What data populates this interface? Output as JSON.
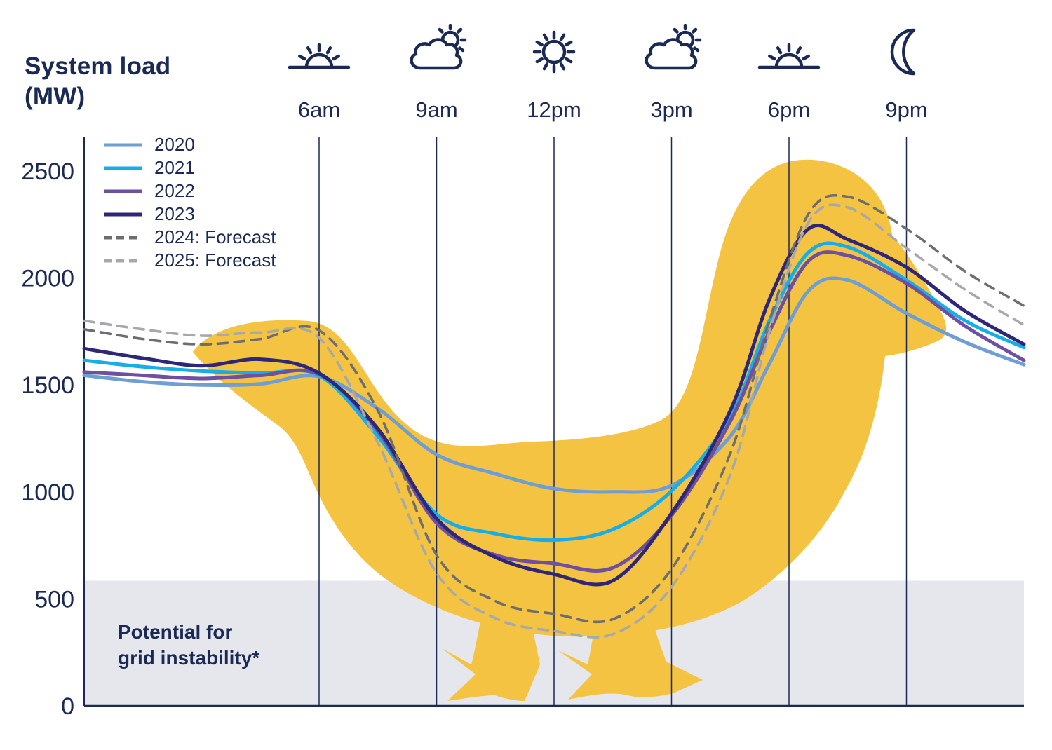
{
  "title": "System load (MW)",
  "instability_band": {
    "line1": "Potential for",
    "line2": "grid instability*"
  },
  "colors": {
    "navy": "#1b2a55",
    "duck_yellow": "#f5c342",
    "band_gray": "#e6e7ec",
    "grid": "#1b2a55"
  },
  "time_axis": [
    {
      "label": "6am",
      "icon": "sunrise-icon"
    },
    {
      "label": "9am",
      "icon": "sun-behind-cloud-icon"
    },
    {
      "label": "12pm",
      "icon": "sun-icon"
    },
    {
      "label": "3pm",
      "icon": "sun-behind-cloud-icon"
    },
    {
      "label": "6pm",
      "icon": "sunset-icon"
    },
    {
      "label": "9pm",
      "icon": "moon-icon"
    }
  ],
  "chart_data": {
    "type": "line",
    "title": "System load (MW)",
    "ylabel": "System load (MW)",
    "x_unit": "hour_of_day",
    "x": [
      0,
      1.5,
      3,
      4.5,
      6,
      7.5,
      9,
      10.5,
      12,
      13.5,
      15,
      16.5,
      17.5,
      18.5,
      19.5,
      21,
      22.5,
      24
    ],
    "x_tick_hours": [
      6,
      9,
      12,
      15,
      18,
      21
    ],
    "x_tick_labels": [
      "6am",
      "9am",
      "12pm",
      "3pm",
      "6pm",
      "9pm"
    ],
    "ylim": [
      0,
      2650
    ],
    "yticks": [
      0,
      500,
      1000,
      1500,
      2000,
      2500
    ],
    "grid": "vertical-only",
    "legend_position": "top-left",
    "series": [
      {
        "name": "2020",
        "style": "solid",
        "color": "#6f9ed4",
        "values": [
          1545,
          1515,
          1500,
          1505,
          1540,
          1390,
          1175,
          1085,
          1015,
          1000,
          1030,
          1260,
          1600,
          1940,
          1990,
          1835,
          1700,
          1595
        ]
      },
      {
        "name": "2021",
        "style": "solid",
        "color": "#17aee8",
        "values": [
          1615,
          1585,
          1565,
          1555,
          1545,
          1260,
          895,
          805,
          775,
          825,
          1005,
          1350,
          1800,
          2120,
          2145,
          1990,
          1800,
          1675
        ]
      },
      {
        "name": "2022",
        "style": "solid",
        "color": "#6f4f9f",
        "values": [
          1560,
          1545,
          1530,
          1545,
          1550,
          1285,
          855,
          705,
          665,
          645,
          890,
          1330,
          1750,
          2080,
          2105,
          1975,
          1775,
          1615
        ]
      },
      {
        "name": "2023",
        "style": "solid",
        "color": "#2e2676",
        "values": [
          1670,
          1625,
          1590,
          1620,
          1555,
          1295,
          875,
          695,
          615,
          585,
          900,
          1380,
          1900,
          2230,
          2180,
          2050,
          1845,
          1690
        ]
      },
      {
        "name": "2024: Forecast",
        "style": "dashed",
        "color": "#6d6e70",
        "values": [
          1760,
          1715,
          1690,
          1715,
          1755,
          1380,
          705,
          490,
          430,
          405,
          640,
          1180,
          1800,
          2300,
          2380,
          2230,
          2030,
          1870
        ]
      },
      {
        "name": "2025: Forecast",
        "style": "dashed",
        "color": "#a6a8ab",
        "values": [
          1800,
          1760,
          1730,
          1745,
          1720,
          1230,
          620,
          410,
          350,
          335,
          555,
          1080,
          1750,
          2260,
          2330,
          2140,
          1945,
          1780
        ]
      }
    ],
    "threshold_band": {
      "label": "Potential for grid instability*",
      "from": 0,
      "to": 585
    },
    "background_shape": "duck-silhouette"
  }
}
